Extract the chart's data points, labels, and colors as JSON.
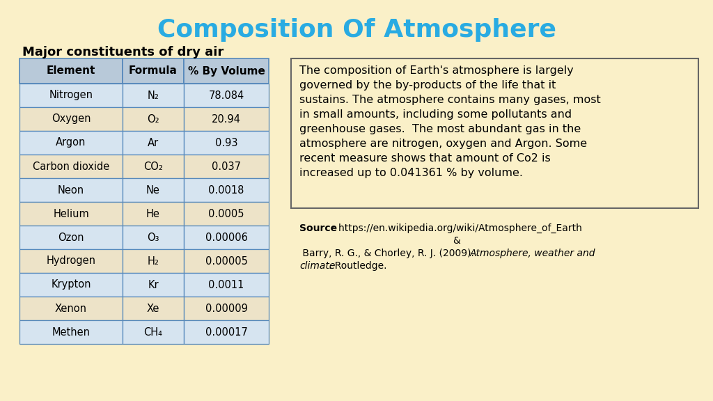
{
  "title": "Composition Of Atmosphere",
  "title_color": "#29ABE2",
  "background_color": "#FAF0C8",
  "table_title": "Major constituents of dry air",
  "col_headers": [
    "Element",
    "Formula",
    "% By Volume"
  ],
  "rows": [
    [
      "Nitrogen",
      "N₂",
      "78.084"
    ],
    [
      "Oxygen",
      "O₂",
      "20.94"
    ],
    [
      "Argon",
      "Ar",
      "0.93"
    ],
    [
      "Carbon dioxide",
      "CO₂",
      "0.037"
    ],
    [
      "Neon",
      "Ne",
      "0.0018"
    ],
    [
      "Helium",
      "He",
      "0.0005"
    ],
    [
      "Ozon",
      "O₃",
      "0.00006"
    ],
    [
      "Hydrogen",
      "H₂",
      "0.00005"
    ],
    [
      "Krypton",
      "Kr",
      "0.0011"
    ],
    [
      "Xenon",
      "Xe",
      "0.00009"
    ],
    [
      "Methen",
      "CH₄",
      "0.00017"
    ]
  ],
  "header_bg": "#B8C9D9",
  "row_bg_odd": "#D6E4F0",
  "row_bg_even": "#EDE3C8",
  "cell_text_color": "#000000",
  "table_border_color": "#5588BB",
  "description_text": "The composition of Earth's atmosphere is largely\noverned by the by-products of the life that it\nsustains. The atmosphere contains many gases, most\nin small amounts, including some pollutants and\ngreenhouse gases.  The most abundant gas in the\natmosphere are nitrogen, oxygen and Argon. Some\nrecent measure shows that amount of Co2 is\nincreased up to 0.041361 % by volume.",
  "source_bold": "Source",
  "source_url": ": https://en.wikipedia.org/wiki/Atmosphere_of_Earth",
  "source_amp": "&",
  "source_ref_normal": " Barry, R. G., & Chorley, R. J. (2009). ",
  "source_ref_italic": "Atmosphere, weather and\nclimate",
  "source_ref_end": ". Routledge."
}
